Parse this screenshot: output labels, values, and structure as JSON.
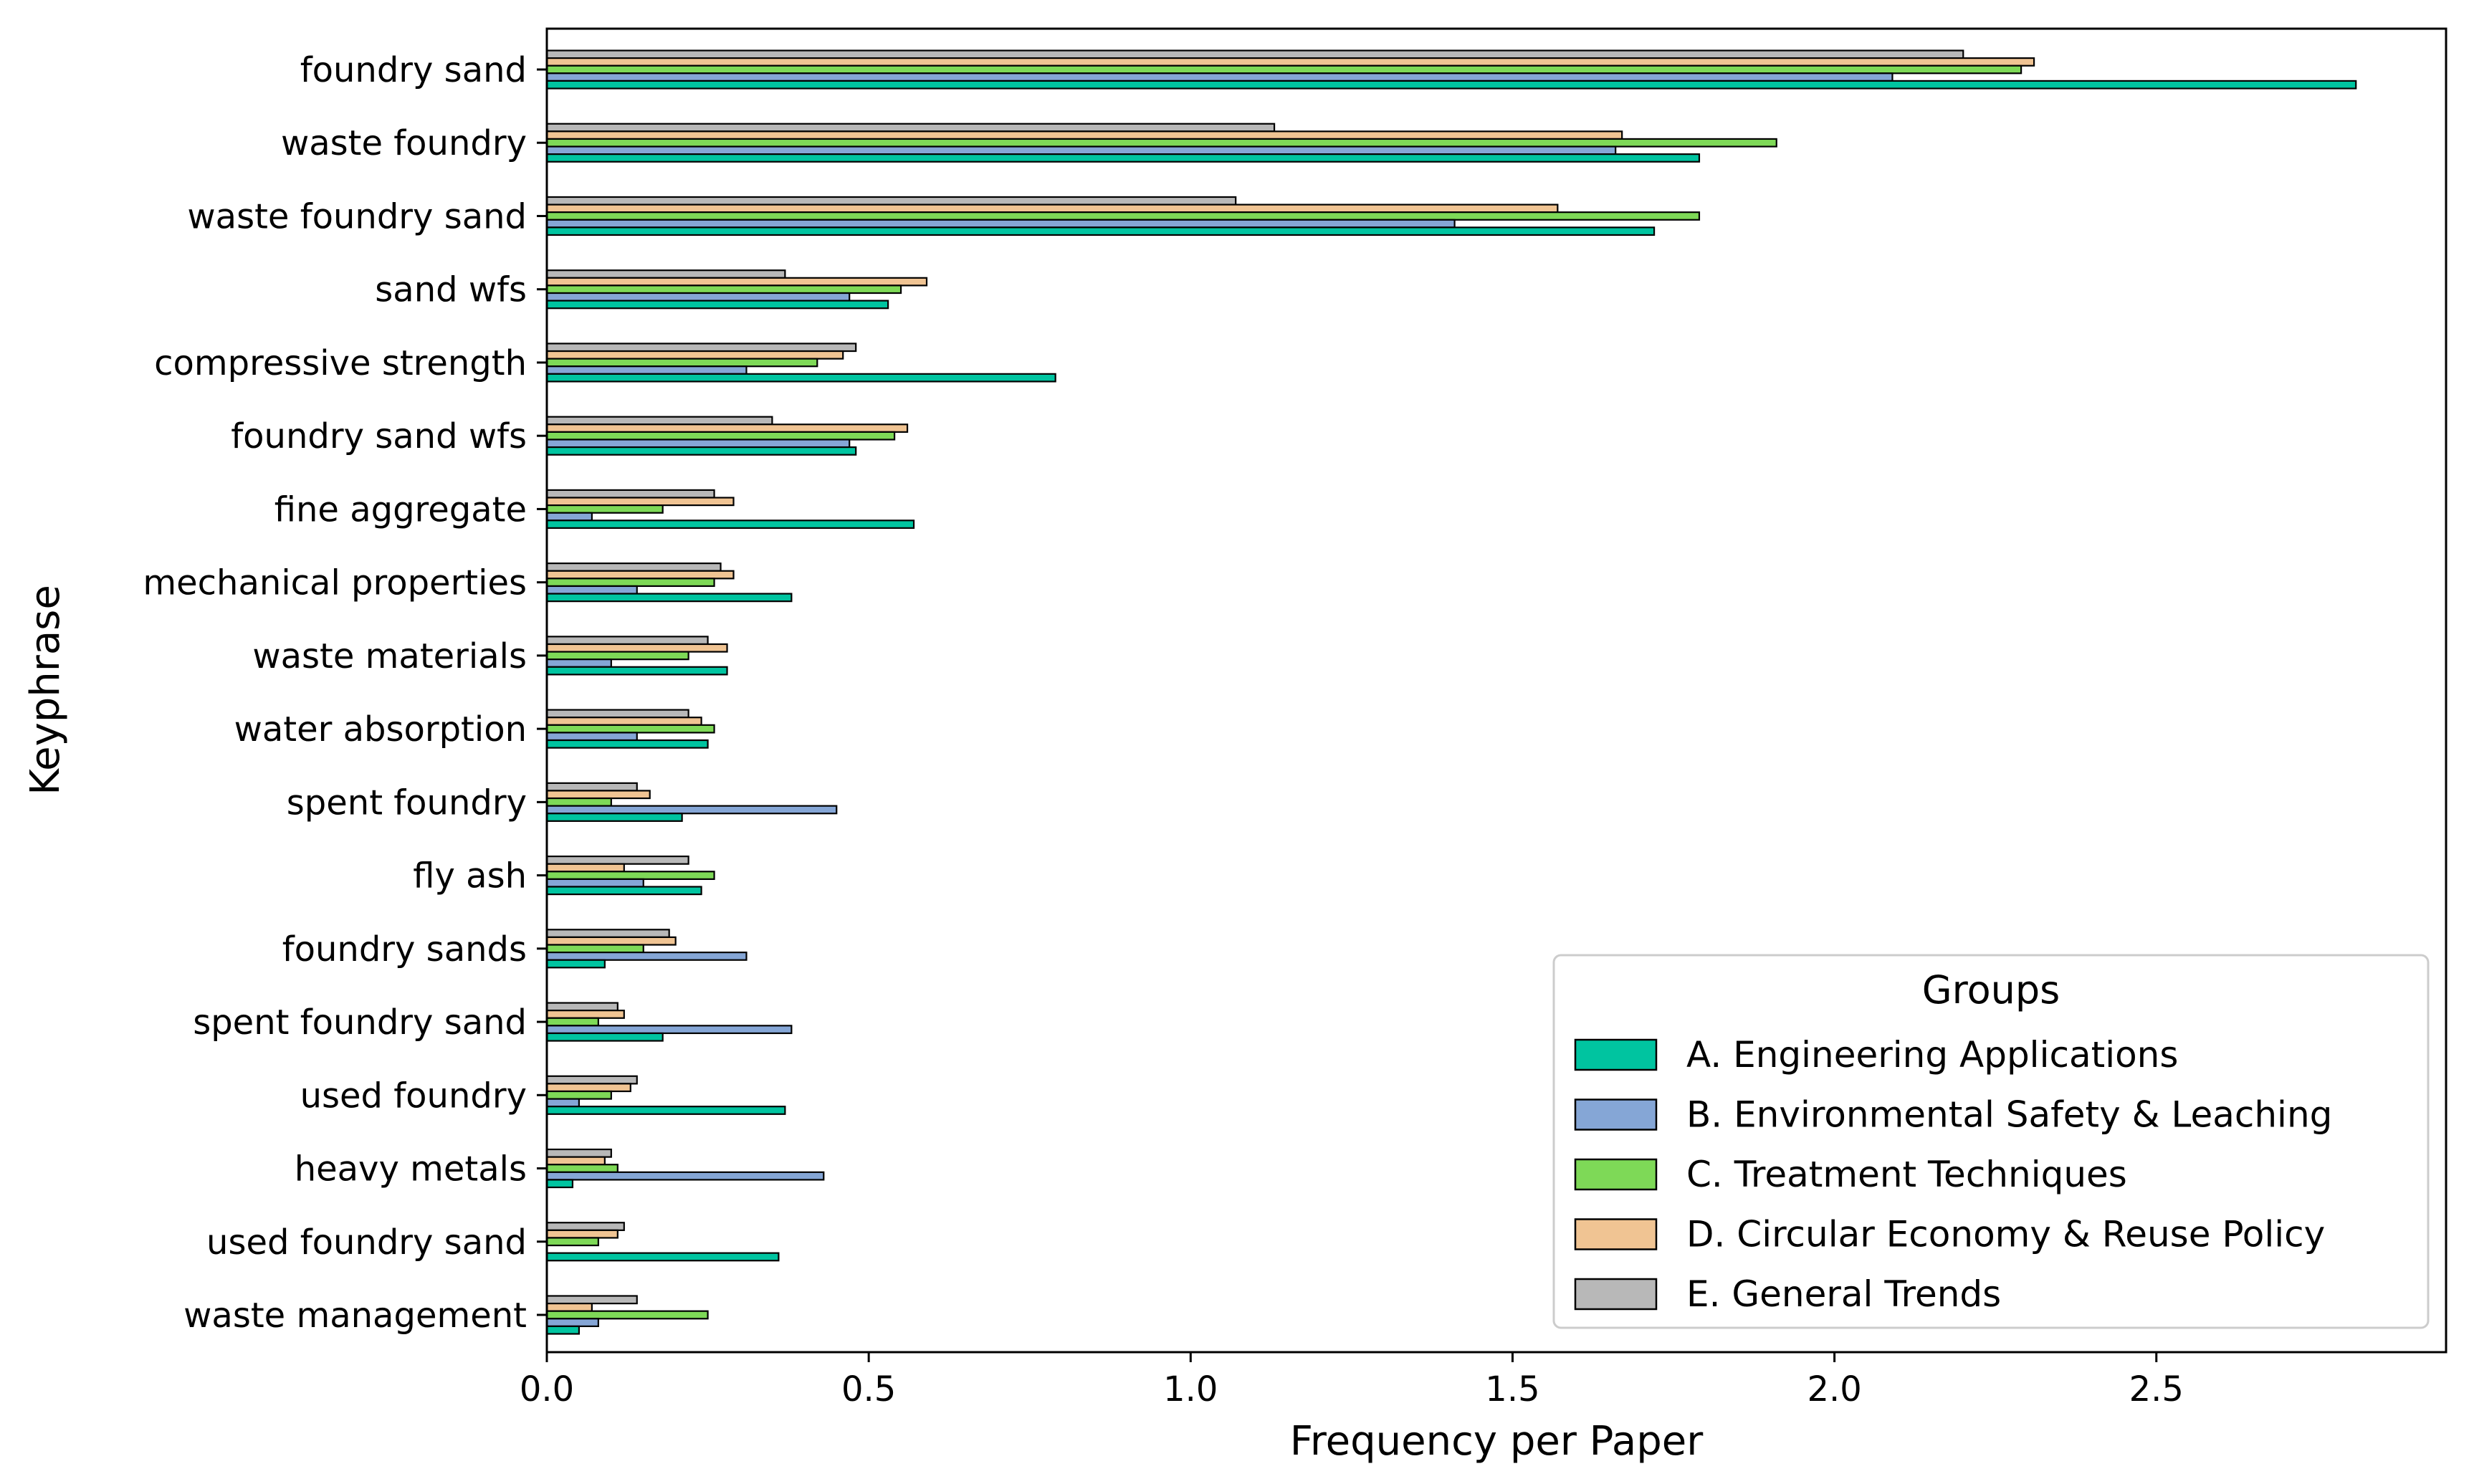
{
  "chart_data": {
    "type": "bar",
    "orientation": "horizontal",
    "xlabel": "Frequency per Paper",
    "ylabel": "Keyphrase",
    "xlim": [
      0,
      2.95
    ],
    "xticks": [
      0.0,
      0.5,
      1.0,
      1.5,
      2.0,
      2.5
    ],
    "xtick_labels": [
      "0.0",
      "0.5",
      "1.0",
      "1.5",
      "2.0",
      "2.5"
    ],
    "grid": false,
    "legend": {
      "title": "Groups",
      "position": "lower-right"
    },
    "categories": [
      "foundry sand",
      "waste foundry",
      "waste foundry sand",
      "sand wfs",
      "compressive strength",
      "foundry sand wfs",
      "fine aggregate",
      "mechanical properties",
      "waste materials",
      "water absorption",
      "spent foundry",
      "fly ash",
      "foundry sands",
      "spent foundry sand",
      "used foundry",
      "heavy metals",
      "used foundry sand",
      "waste management"
    ],
    "series": [
      {
        "name": "A. Engineering Applications",
        "color": "#00c4a0",
        "values": [
          2.81,
          1.79,
          1.72,
          0.53,
          0.79,
          0.48,
          0.57,
          0.38,
          0.28,
          0.25,
          0.21,
          0.24,
          0.09,
          0.18,
          0.37,
          0.04,
          0.36,
          0.05
        ]
      },
      {
        "name": "B. Environmental Safety & Leaching",
        "color": "#85a6d6",
        "values": [
          2.09,
          1.66,
          1.41,
          0.47,
          0.31,
          0.47,
          0.07,
          0.14,
          0.1,
          0.14,
          0.45,
          0.15,
          0.31,
          0.38,
          0.05,
          0.43,
          0.0,
          0.08
        ]
      },
      {
        "name": "C. Treatment Techniques",
        "color": "#7ed957",
        "values": [
          2.29,
          1.91,
          1.79,
          0.55,
          0.42,
          0.54,
          0.18,
          0.26,
          0.22,
          0.26,
          0.1,
          0.26,
          0.15,
          0.08,
          0.1,
          0.11,
          0.08,
          0.25
        ]
      },
      {
        "name": "D. Circular Economy & Reuse Policy",
        "color": "#f0c493",
        "values": [
          2.31,
          1.67,
          1.57,
          0.59,
          0.46,
          0.56,
          0.29,
          0.29,
          0.28,
          0.24,
          0.16,
          0.12,
          0.2,
          0.12,
          0.13,
          0.09,
          0.11,
          0.07
        ]
      },
      {
        "name": "E. General Trends",
        "color": "#b8b8b8",
        "values": [
          2.2,
          1.13,
          1.07,
          0.37,
          0.48,
          0.35,
          0.26,
          0.27,
          0.25,
          0.22,
          0.14,
          0.22,
          0.19,
          0.11,
          0.14,
          0.1,
          0.12,
          0.14
        ]
      }
    ]
  }
}
